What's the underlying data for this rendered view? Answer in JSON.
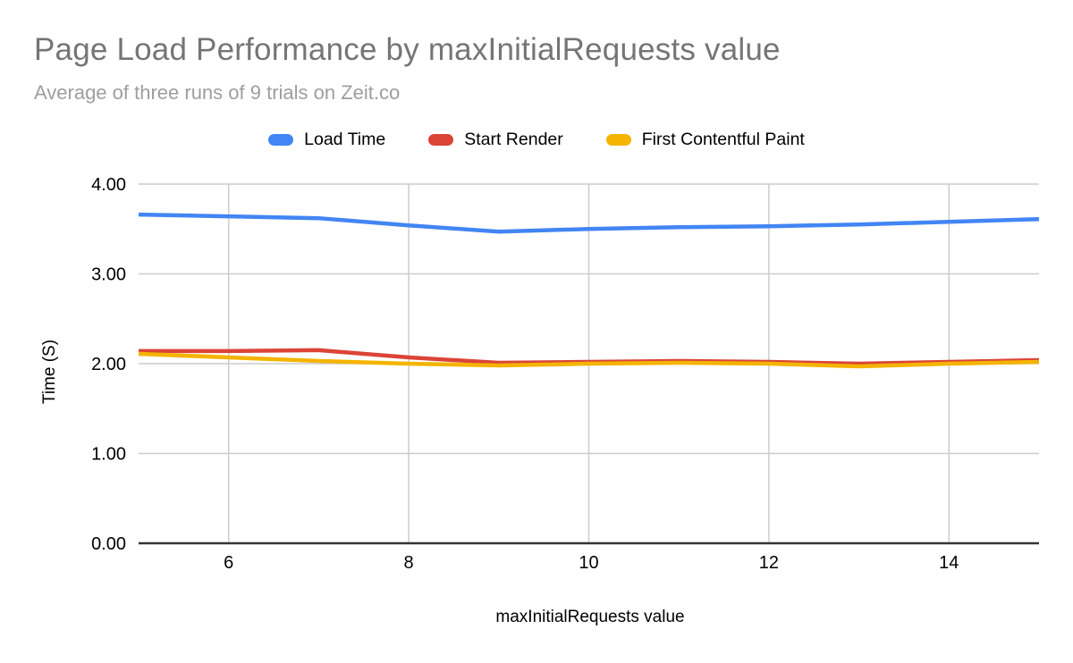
{
  "chart_data": {
    "type": "line",
    "title": "Page Load Performance by maxInitialRequests value",
    "subtitle": "Average of three runs of 9 trials on Zeit.co",
    "xlabel": "maxInitialRequests value",
    "ylabel": "Time (S)",
    "x": [
      5,
      6,
      7,
      8,
      9,
      10,
      11,
      12,
      13,
      14,
      15
    ],
    "series": [
      {
        "name": "Load Time",
        "color": "#4285F4",
        "values": [
          3.66,
          3.64,
          3.62,
          3.54,
          3.47,
          3.5,
          3.52,
          3.53,
          3.55,
          3.58,
          3.61
        ]
      },
      {
        "name": "Start Render",
        "color": "#DB4437",
        "values": [
          2.14,
          2.14,
          2.15,
          2.07,
          2.01,
          2.02,
          2.03,
          2.02,
          2.0,
          2.02,
          2.04
        ]
      },
      {
        "name": "First Contentful Paint",
        "color": "#F4B400",
        "values": [
          2.11,
          2.07,
          2.03,
          2.0,
          1.98,
          2.0,
          2.01,
          2.0,
          1.97,
          2.0,
          2.02
        ]
      }
    ],
    "xlim": [
      5,
      15
    ],
    "ylim": [
      0,
      4
    ],
    "x_tick_values": [
      6,
      8,
      10,
      12,
      14
    ],
    "x_tick_labels": [
      "6",
      "8",
      "10",
      "12",
      "14"
    ],
    "y_tick_values": [
      0,
      1,
      2,
      3,
      4
    ],
    "y_tick_labels": [
      "0.00",
      "1.00",
      "2.00",
      "3.00",
      "4.00"
    ],
    "grid": true,
    "legend_position": "top",
    "gridline_color": "#cccccc",
    "axis_line_color": "#333333"
  }
}
